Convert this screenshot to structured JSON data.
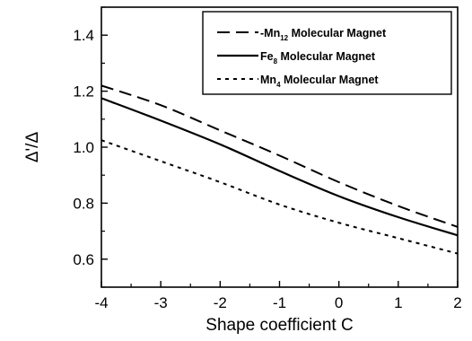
{
  "chart_data": {
    "type": "line",
    "xlabel": "Shape coefficient C",
    "ylabel": "Δ'/Δ",
    "xlim": [
      -4,
      2
    ],
    "ylim": [
      0.5,
      1.5
    ],
    "xticks": [
      "-4",
      "-3",
      "-2",
      "-1",
      "0",
      "1",
      "2"
    ],
    "yticks": [
      "0.6",
      "0.8",
      "1.0",
      "1.2",
      "1.4"
    ],
    "x": [
      -4,
      -3,
      -2,
      -1,
      0,
      1,
      2
    ],
    "legend_position": "top-right",
    "series": [
      {
        "id": "mn12",
        "name_main": "Mn",
        "name_sub": "12",
        "name_rest": " Molecular Magnet",
        "label_prefix": "-",
        "style": "dashed",
        "values": [
          1.22,
          1.15,
          1.06,
          0.97,
          0.875,
          0.79,
          0.715
        ]
      },
      {
        "id": "fe8",
        "name_main": "Fe",
        "name_sub": "8",
        "name_rest": " Molecular Magnet",
        "label_prefix": "",
        "style": "solid",
        "values": [
          1.175,
          1.095,
          1.01,
          0.915,
          0.825,
          0.75,
          0.685
        ]
      },
      {
        "id": "mn4",
        "name_main": "Mn",
        "name_sub": "4",
        "name_rest": "  Molecular Magnet",
        "label_prefix": "",
        "style": "dotted",
        "values": [
          1.025,
          0.95,
          0.875,
          0.795,
          0.73,
          0.675,
          0.62
        ]
      }
    ]
  }
}
